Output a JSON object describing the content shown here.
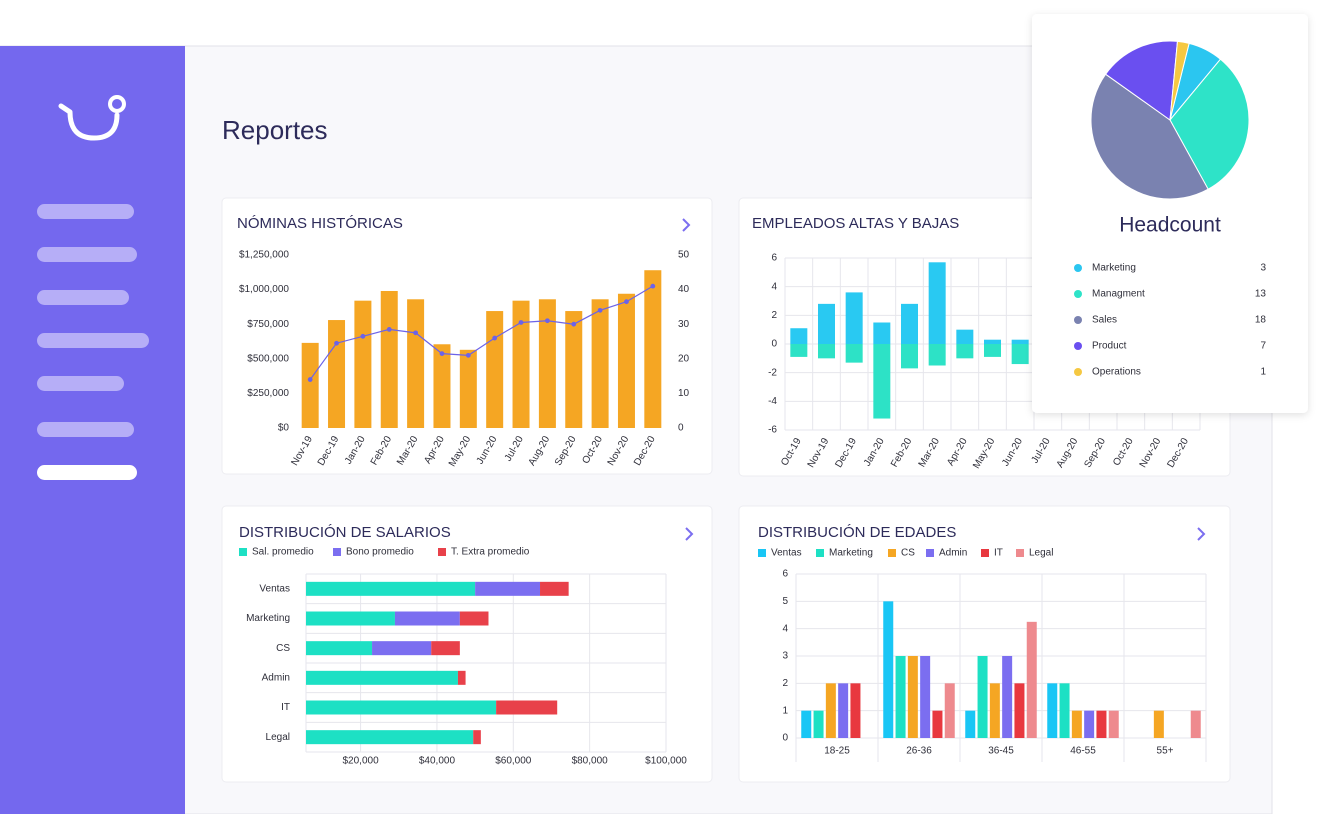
{
  "header": {
    "title": "Reportes"
  },
  "chart_data": [
    {
      "type": "combo",
      "title": "NÓMINAS HISTÓRICAS",
      "categories": [
        "Nov-19",
        "Dec-19",
        "Jan-20",
        "Feb-20",
        "Mar-20",
        "Apr-20",
        "May-20",
        "Jun-20",
        "Jul-20",
        "Aug-20",
        "Sep-20",
        "Oct-20",
        "Nov-20",
        "Dec-20"
      ],
      "series": [
        {
          "color": "#f5a623",
          "values": [
            615000,
            780000,
            920000,
            990000,
            930000,
            605000,
            565000,
            845000,
            920000,
            930000,
            845000,
            930000,
            970000,
            1140000
          ]
        },
        {
          "color": "#6c63e8",
          "axis": "y2",
          "values": [
            14,
            24.5,
            26.5,
            28.5,
            27.5,
            21.5,
            21,
            26,
            30.5,
            31,
            30,
            34,
            36.5,
            41
          ]
        }
      ],
      "ylim": [
        0,
        1250000
      ],
      "yticks": [
        {
          "value": 0,
          "label": "$0"
        },
        {
          "value": 250000,
          "label": "$250,000"
        },
        {
          "value": 500000,
          "label": "$500,000"
        },
        {
          "value": 750000,
          "label": "$750,000"
        },
        {
          "value": 1000000,
          "label": "$1,000,000"
        },
        {
          "value": 1250000,
          "label": "$1,250,000"
        }
      ],
      "y2lim": [
        0,
        50
      ],
      "y2ticks": [
        0,
        10,
        20,
        30,
        40,
        50
      ]
    },
    {
      "type": "bar",
      "title": "EMPLEADOS ALTAS Y BAJAS",
      "stacked": true,
      "grid": true,
      "categories": [
        "Oct-19",
        "Nov-19",
        "Dec-19",
        "Jan-20",
        "Feb-20",
        "Mar-20",
        "Apr-20",
        "May-20",
        "Jun-20",
        "Jul-20",
        "Aug-20",
        "Sep-20",
        "Oct-20",
        "Nov-20",
        "Dec-20"
      ],
      "series": [
        {
          "color": "#29c9f2",
          "values": [
            1.1,
            2.8,
            3.6,
            1.5,
            2.8,
            5.7,
            1.0,
            0.3,
            0.3,
            null,
            null,
            null,
            null,
            null,
            null
          ]
        },
        {
          "color": "#2de2c6",
          "values": [
            -0.9,
            -1.0,
            -1.3,
            -5.2,
            -1.7,
            -1.5,
            -1.0,
            -0.9,
            -1.4,
            null,
            null,
            null,
            null,
            null,
            null
          ]
        }
      ],
      "ylim": [
        -6,
        6
      ],
      "yticks": [
        -6,
        -4,
        -2,
        0,
        2,
        4,
        6
      ]
    },
    {
      "type": "barh",
      "title": "DISTRIBUCIÓN DE SALARIOS",
      "stacked": true,
      "grid": true,
      "legend": "top-left",
      "categories": [
        "Ventas",
        "Marketing",
        "CS",
        "Admin",
        "IT",
        "Legal"
      ],
      "series": [
        {
          "name": "Sal. promedio",
          "color": "#1de0c4",
          "values": [
            50000,
            29000,
            23000,
            45500,
            55500,
            49500
          ]
        },
        {
          "name": "Bono promedio",
          "color": "#7b6ef0",
          "values": [
            17000,
            17000,
            15500,
            0,
            0,
            0
          ]
        },
        {
          "name": "T. Extra promedio",
          "color": "#e8414a",
          "values": [
            7500,
            7500,
            7500,
            2000,
            16000,
            2000
          ]
        }
      ],
      "xlim": [
        5700,
        100000
      ],
      "xticks": [
        {
          "value": 20000,
          "label": "$20,000"
        },
        {
          "value": 40000,
          "label": "$40,000"
        },
        {
          "value": 60000,
          "label": "$60,000"
        },
        {
          "value": 80000,
          "label": "$80,000"
        },
        {
          "value": 100000,
          "label": "$100,000"
        }
      ]
    },
    {
      "type": "bar",
      "title": "DISTRIBUCIÓN DE EDADES",
      "stacked": false,
      "grid": true,
      "legend": "top-left",
      "categories": [
        "18-25",
        "26-36",
        "36-45",
        "46-55",
        "55+"
      ],
      "series": [
        {
          "name": "Ventas",
          "color": "#19c6f5",
          "values": [
            1,
            5,
            1,
            2,
            0
          ]
        },
        {
          "name": "Marketing",
          "color": "#1de0c4",
          "values": [
            1,
            3,
            3,
            2,
            0
          ]
        },
        {
          "name": "CS",
          "color": "#f5a623",
          "values": [
            2,
            3,
            2,
            1,
            1
          ]
        },
        {
          "name": "Admin",
          "color": "#7b6ef0",
          "values": [
            2,
            3,
            3,
            1,
            0
          ]
        },
        {
          "name": "IT",
          "color": "#e8383f",
          "values": [
            2,
            1,
            2,
            1,
            0
          ]
        },
        {
          "name": "Legal",
          "color": "#ee8a8e",
          "values": [
            0,
            2,
            4.25,
            1,
            1
          ]
        }
      ],
      "ylim": [
        0,
        6
      ],
      "yticks": [
        0,
        1,
        2,
        3,
        4,
        5,
        6
      ]
    },
    {
      "type": "pie",
      "title": "Headcount",
      "categories": [
        "Marketing",
        "Managment",
        "Sales",
        "Product",
        "Operations"
      ],
      "values": [
        3,
        13,
        18,
        7,
        1
      ],
      "colors": [
        "#2bc6f0",
        "#2ee3c8",
        "#7a82b0",
        "#6a4ff0",
        "#f5c842"
      ]
    }
  ]
}
